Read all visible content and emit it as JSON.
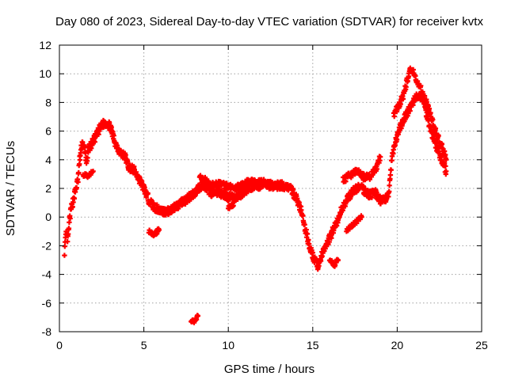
{
  "chart_data": {
    "type": "scatter",
    "title": "Day 080 of 2023, Sidereal Day-to-day VTEC variation (SDTVAR) for receiver kvtx",
    "xlabel": "GPS time / hours",
    "ylabel": "SDTVAR / TECUs",
    "xlim": [
      0,
      25
    ],
    "ylim": [
      -8,
      12
    ],
    "x_ticks": [
      0,
      5,
      10,
      15,
      20,
      25
    ],
    "y_ticks": [
      -8,
      -6,
      -4,
      -2,
      0,
      2,
      4,
      6,
      8,
      10,
      12
    ],
    "x_tick_labels": [
      "0",
      "5",
      "10",
      "15",
      "20",
      "25"
    ],
    "y_tick_labels": [
      "-8",
      "-6",
      "-4",
      "-2",
      "0",
      "2",
      "4",
      "6",
      "8",
      "10",
      "12"
    ],
    "grid": true,
    "marker": "plus",
    "series": [
      {
        "name": "SDTVAR kvtx",
        "color": "#ff0000",
        "trace": [
          [
            0.3,
            -2.4
          ],
          [
            0.4,
            -1.2
          ],
          [
            0.5,
            -1.6
          ],
          [
            0.6,
            -0.2
          ],
          [
            0.7,
            0.6
          ],
          [
            0.8,
            1.1
          ],
          [
            1.1,
            2.6
          ],
          [
            1.2,
            4.0
          ],
          [
            1.35,
            5.2
          ],
          [
            1.5,
            4.7
          ],
          [
            1.6,
            3.8
          ],
          [
            1.75,
            4.8
          ],
          [
            2.0,
            5.3
          ],
          [
            2.2,
            5.7
          ],
          [
            2.4,
            6.2
          ],
          [
            2.6,
            6.5
          ],
          [
            2.8,
            6.6
          ],
          [
            3.0,
            6.3
          ],
          [
            3.3,
            5.2
          ],
          [
            3.6,
            4.5
          ],
          [
            3.9,
            4.2
          ],
          [
            4.1,
            3.5
          ],
          [
            4.4,
            3.3
          ],
          [
            4.7,
            2.7
          ],
          [
            5.0,
            2.0
          ],
          [
            5.3,
            1.2
          ],
          [
            5.6,
            0.7
          ],
          [
            5.9,
            0.5
          ],
          [
            6.2,
            0.4
          ],
          [
            6.5,
            0.4
          ],
          [
            6.8,
            0.7
          ],
          [
            7.1,
            0.9
          ],
          [
            7.4,
            1.1
          ],
          [
            7.7,
            1.4
          ],
          [
            8.0,
            1.7
          ],
          [
            8.2,
            2.0
          ],
          [
            8.5,
            2.3
          ],
          [
            8.8,
            1.9
          ],
          [
            9.1,
            1.6
          ],
          [
            9.4,
            1.7
          ],
          [
            9.7,
            1.6
          ],
          [
            10.0,
            1.4
          ],
          [
            10.3,
            1.3
          ],
          [
            10.6,
            1.5
          ],
          [
            10.9,
            1.7
          ],
          [
            11.2,
            2.0
          ],
          [
            11.5,
            2.2
          ],
          [
            11.8,
            2.2
          ],
          [
            12.1,
            2.3
          ],
          [
            12.4,
            2.2
          ],
          [
            12.8,
            2.2
          ],
          [
            13.2,
            2.2
          ],
          [
            13.6,
            2.1
          ],
          [
            14.0,
            1.4
          ],
          [
            14.3,
            0.5
          ],
          [
            14.5,
            -0.6
          ],
          [
            14.7,
            -1.5
          ],
          [
            14.9,
            -2.4
          ],
          [
            15.1,
            -3.0
          ],
          [
            15.3,
            -3.4
          ],
          [
            15.5,
            -2.8
          ],
          [
            15.7,
            -2.2
          ],
          [
            15.9,
            -1.7
          ],
          [
            16.1,
            -1.2
          ],
          [
            16.3,
            -0.6
          ],
          [
            16.5,
            -0.2
          ],
          [
            16.7,
            0.5
          ],
          [
            16.9,
            1.0
          ],
          [
            17.1,
            1.3
          ],
          [
            17.3,
            1.7
          ],
          [
            17.5,
            1.9
          ],
          [
            17.7,
            2.1
          ],
          [
            17.9,
            2.0
          ],
          [
            18.1,
            1.8
          ],
          [
            18.3,
            1.6
          ],
          [
            18.5,
            1.6
          ],
          [
            18.7,
            1.7
          ],
          [
            18.9,
            1.3
          ],
          [
            19.1,
            1.1
          ],
          [
            19.3,
            1.3
          ],
          [
            19.5,
            1.6
          ],
          [
            19.7,
            4.2
          ],
          [
            19.9,
            5.2
          ],
          [
            20.1,
            6.0
          ],
          [
            20.3,
            6.6
          ],
          [
            20.5,
            7.1
          ],
          [
            20.7,
            7.5
          ],
          [
            20.9,
            7.9
          ],
          [
            21.1,
            8.3
          ],
          [
            21.3,
            8.5
          ],
          [
            21.5,
            8.3
          ],
          [
            21.7,
            7.4
          ],
          [
            21.9,
            6.5
          ],
          [
            22.1,
            5.7
          ],
          [
            22.3,
            5.0
          ],
          [
            22.5,
            4.4
          ],
          [
            22.7,
            3.8
          ],
          [
            22.9,
            3.2
          ]
        ],
        "upper_branches": [
          [
            [
              8.3,
              2.8
            ],
            [
              8.7,
              2.5
            ],
            [
              9.0,
              2.2
            ],
            [
              9.5,
              2.3
            ],
            [
              10.0,
              2.1
            ],
            [
              10.4,
              2.0
            ],
            [
              10.8,
              2.2
            ],
            [
              11.2,
              2.5
            ],
            [
              11.6,
              2.4
            ],
            [
              12.0,
              2.4
            ],
            [
              12.5,
              2.5
            ]
          ],
          [
            [
              16.8,
              2.6
            ],
            [
              17.2,
              2.9
            ],
            [
              17.6,
              3.2
            ],
            [
              18.0,
              2.8
            ],
            [
              18.4,
              2.8
            ],
            [
              18.8,
              3.5
            ],
            [
              19.0,
              4.2
            ]
          ],
          [
            [
              19.8,
              7.2
            ],
            [
              20.1,
              7.8
            ],
            [
              20.4,
              8.6
            ],
            [
              20.6,
              9.6
            ],
            [
              20.8,
              10.4
            ],
            [
              21.0,
              10.0
            ],
            [
              21.2,
              9.4
            ],
            [
              21.4,
              9.0
            ],
            [
              21.7,
              8.1
            ],
            [
              22.0,
              7.0
            ],
            [
              22.4,
              5.6
            ],
            [
              22.7,
              4.8
            ],
            [
              22.9,
              4.0
            ]
          ]
        ],
        "lower_branches": [
          [
            [
              1.4,
              3.0
            ],
            [
              1.7,
              2.9
            ],
            [
              2.0,
              3.2
            ]
          ],
          [
            [
              5.3,
              -1.0
            ],
            [
              5.6,
              -1.2
            ],
            [
              5.9,
              -0.9
            ]
          ],
          [
            [
              7.8,
              -7.4
            ],
            [
              8.0,
              -7.2
            ],
            [
              8.2,
              -6.9
            ]
          ],
          [
            [
              10.0,
              0.7
            ],
            [
              10.3,
              0.8
            ]
          ],
          [
            [
              16.0,
              -3.1
            ],
            [
              16.3,
              -3.3
            ],
            [
              16.5,
              -3.0
            ]
          ],
          [
            [
              17.0,
              -1.0
            ],
            [
              17.3,
              -0.6
            ],
            [
              17.6,
              -0.3
            ],
            [
              17.9,
              0.0
            ]
          ]
        ]
      }
    ]
  }
}
